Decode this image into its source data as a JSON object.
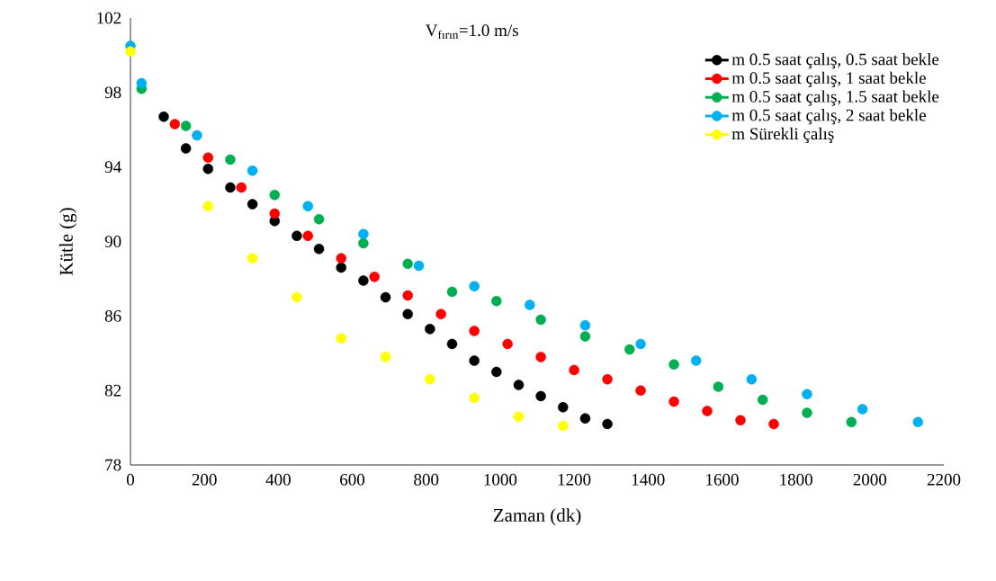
{
  "chart_data": {
    "type": "scatter",
    "title": "V$_{fırın}$=1.0 m/s",
    "xlabel": "Zaman (dk)",
    "ylabel": "Kütle (g)",
    "xlim": [
      0,
      2200
    ],
    "xticks": [
      0,
      200,
      400,
      600,
      800,
      1000,
      1200,
      1400,
      1600,
      1800,
      2000,
      2200
    ],
    "ylim": [
      78,
      102
    ],
    "yticks": [
      78,
      82,
      86,
      90,
      94,
      98,
      102
    ],
    "grid": false,
    "legend": "top right",
    "series": [
      {
        "name": "m   0.5 saat çalış, 0.5  saat bekle",
        "color": "#000000",
        "x": [
          90,
          150,
          210,
          270,
          330,
          390,
          450,
          510,
          570,
          630,
          690,
          750,
          810,
          870,
          930,
          990,
          1050,
          1110,
          1170,
          1230,
          1290
        ],
        "values": [
          96.7,
          95.0,
          93.9,
          92.9,
          92.0,
          91.1,
          90.3,
          89.6,
          88.6,
          87.9,
          87.0,
          86.1,
          85.3,
          84.5,
          83.6,
          83.0,
          82.3,
          81.7,
          81.1,
          80.5,
          80.2
        ]
      },
      {
        "name": "m   0.5 saat çalış, 1  saat bekle",
        "color": "#ff0000",
        "x": [
          120,
          210,
          300,
          390,
          480,
          570,
          660,
          750,
          840,
          930,
          1020,
          1110,
          1200,
          1290,
          1380,
          1470,
          1560,
          1650,
          1740
        ],
        "values": [
          96.3,
          94.5,
          92.9,
          91.5,
          90.3,
          89.1,
          88.1,
          87.1,
          86.1,
          85.2,
          84.5,
          83.8,
          83.1,
          82.6,
          82.0,
          81.4,
          80.9,
          80.4,
          80.2
        ]
      },
      {
        "name": "m   0.5 saat çalış, 1.5  saat bekle",
        "color": "#00b050",
        "x": [
          30,
          150,
          270,
          390,
          510,
          630,
          750,
          870,
          990,
          1110,
          1230,
          1350,
          1470,
          1590,
          1710,
          1830,
          1950
        ],
        "values": [
          98.2,
          96.2,
          94.4,
          92.5,
          91.2,
          89.9,
          88.8,
          87.3,
          86.8,
          85.8,
          84.9,
          84.2,
          83.4,
          82.2,
          81.5,
          80.8,
          80.3
        ]
      },
      {
        "name": "m   0.5 saat çalış, 2  saat bekle",
        "color": "#00b0f0",
        "x": [
          0,
          30,
          180,
          330,
          480,
          630,
          780,
          930,
          1080,
          1230,
          1380,
          1530,
          1680,
          1830,
          1980,
          2130
        ],
        "values": [
          100.5,
          98.5,
          95.7,
          93.8,
          91.9,
          90.4,
          88.7,
          87.6,
          86.6,
          85.5,
          84.5,
          83.6,
          82.6,
          81.8,
          81.0,
          80.3
        ]
      },
      {
        "name": "m   Sürekli çalış",
        "color": "#ffff00",
        "x": [
          0,
          210,
          330,
          450,
          570,
          690,
          810,
          930,
          1050,
          1170
        ],
        "values": [
          100.2,
          91.9,
          89.1,
          87.0,
          84.8,
          83.8,
          82.6,
          81.6,
          80.6,
          80.1
        ]
      }
    ]
  }
}
